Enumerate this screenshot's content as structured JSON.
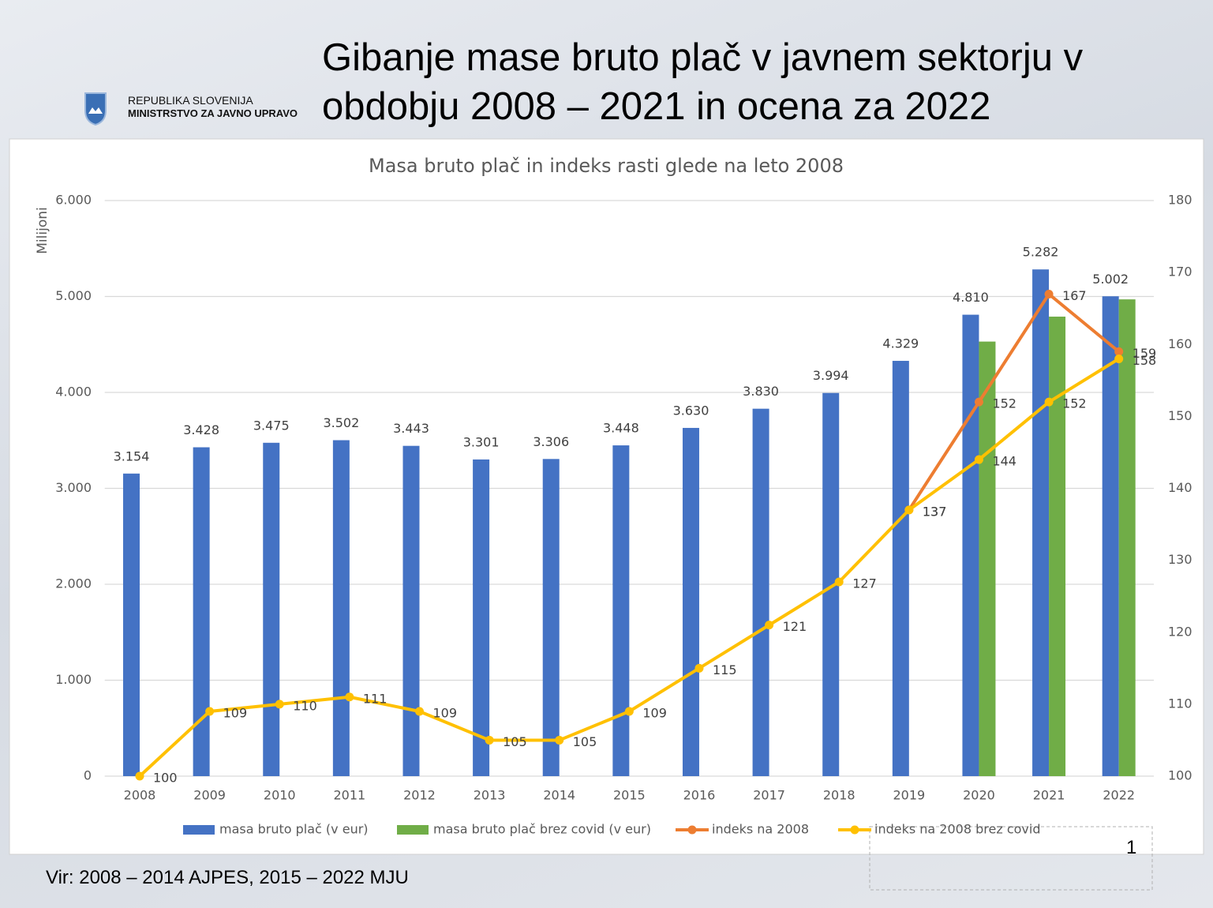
{
  "slide": {
    "title": "Gibanje mase bruto plač v javnem sektorju v obdobju 2008 – 2021 in ocena za 2022",
    "org_line1": "REPUBLIKA SLOVENIJA",
    "org_line2": "MINISTRSTVO ZA JAVNO UPRAVO",
    "source": "Vir: 2008 – 2014 AJPES, 2015 – 2022 MJU",
    "page_number": "1"
  },
  "chart_data": {
    "type": "bar-line",
    "title": "Masa bruto plač in indeks rasti glede na leto 2008",
    "y_label": "Milijoni",
    "categories": [
      "2008",
      "2009",
      "2010",
      "2011",
      "2012",
      "2013",
      "2014",
      "2015",
      "2016",
      "2017",
      "2018",
      "2019",
      "2020",
      "2021",
      "2022"
    ],
    "ylim": [
      0,
      6000
    ],
    "yticks": [
      {
        "value": 0,
        "label": "0"
      },
      {
        "value": 1000,
        "label": "1.000"
      },
      {
        "value": 2000,
        "label": "2.000"
      },
      {
        "value": 3000,
        "label": "3.000"
      },
      {
        "value": 4000,
        "label": "4.000"
      },
      {
        "value": 5000,
        "label": "5.000"
      },
      {
        "value": 6000,
        "label": "6.000"
      }
    ],
    "y2lim": [
      100,
      180
    ],
    "y2ticks": [
      100,
      110,
      120,
      130,
      140,
      150,
      160,
      170,
      180
    ],
    "grid": true,
    "legend": "bottom",
    "series": [
      {
        "name": "masa bruto plač (v eur)",
        "kind": "bar",
        "color": "#4472c4",
        "values": [
          3154,
          3428,
          3475,
          3502,
          3443,
          3301,
          3306,
          3448,
          3630,
          3830,
          3994,
          4329,
          4810,
          5282,
          5002
        ],
        "value_labels": [
          "3.154",
          "3.428",
          "3.475",
          "3.502",
          "3.443",
          "3.301",
          "3.306",
          "3.448",
          "3.630",
          "3.830",
          "3.994",
          "4.329",
          "4.810",
          "5.282",
          "5.002"
        ]
      },
      {
        "name": "masa bruto plač brez covid (v eur)",
        "kind": "bar",
        "color": "#70ad47",
        "values": [
          null,
          null,
          null,
          null,
          null,
          null,
          null,
          null,
          null,
          null,
          null,
          null,
          4530,
          4790,
          4970
        ]
      },
      {
        "name": "indeks na 2008",
        "kind": "line",
        "axis": "y2",
        "color": "#ed7d31",
        "values": [
          null,
          null,
          null,
          null,
          null,
          null,
          null,
          null,
          null,
          null,
          null,
          137,
          152,
          167,
          159
        ]
      },
      {
        "name": "indeks na 2008 brez covid",
        "kind": "line",
        "axis": "y2",
        "color": "#ffc000",
        "values": [
          100,
          109,
          110,
          111,
          109,
          105,
          105,
          109,
          115,
          121,
          127,
          137,
          144,
          152,
          158
        ]
      }
    ]
  }
}
